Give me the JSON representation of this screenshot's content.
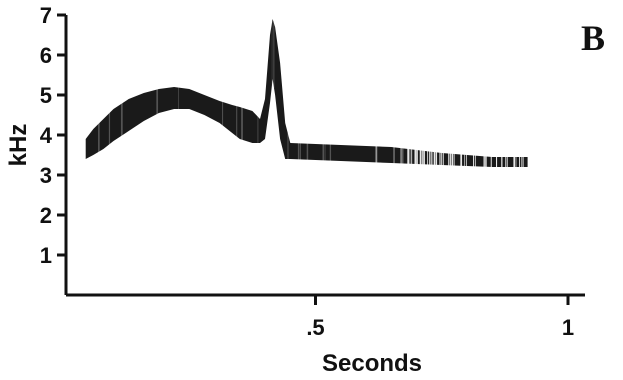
{
  "panel_label": "B",
  "chart_data": {
    "type": "spectrogram",
    "title": "",
    "xlabel": "Seconds",
    "ylabel": "kHz",
    "xlim": [
      -0.05,
      1.05
    ],
    "ylim": [
      0,
      7
    ],
    "x_ticks": [
      {
        "value": 0.5,
        "label": ".5"
      },
      {
        "value": 1.0,
        "label": "1"
      }
    ],
    "y_ticks": [
      {
        "value": 1,
        "label": "1"
      },
      {
        "value": 2,
        "label": "2"
      },
      {
        "value": 3,
        "label": "3"
      },
      {
        "value": 4,
        "label": "4"
      },
      {
        "value": 5,
        "label": "5"
      },
      {
        "value": 6,
        "label": "6"
      },
      {
        "value": 7,
        "label": "7"
      }
    ],
    "grid": false,
    "color": "#1a1a1a",
    "band": [
      {
        "t": 0.045,
        "low": 3.4,
        "high": 3.9
      },
      {
        "t": 0.06,
        "low": 3.5,
        "high": 4.15
      },
      {
        "t": 0.08,
        "low": 3.65,
        "high": 4.4
      },
      {
        "t": 0.1,
        "low": 3.85,
        "high": 4.65
      },
      {
        "t": 0.13,
        "low": 4.1,
        "high": 4.9
      },
      {
        "t": 0.16,
        "low": 4.35,
        "high": 5.05
      },
      {
        "t": 0.19,
        "low": 4.55,
        "high": 5.15
      },
      {
        "t": 0.22,
        "low": 4.65,
        "high": 5.2
      },
      {
        "t": 0.25,
        "low": 4.65,
        "high": 5.15
      },
      {
        "t": 0.28,
        "low": 4.5,
        "high": 5.0
      },
      {
        "t": 0.31,
        "low": 4.3,
        "high": 4.85
      },
      {
        "t": 0.335,
        "low": 4.05,
        "high": 4.75
      },
      {
        "t": 0.35,
        "low": 3.9,
        "high": 4.7
      },
      {
        "t": 0.375,
        "low": 3.8,
        "high": 4.6
      },
      {
        "t": 0.39,
        "low": 3.8,
        "high": 4.4
      },
      {
        "t": 0.4,
        "low": 3.9,
        "high": 4.9
      },
      {
        "t": 0.41,
        "low": 4.8,
        "high": 6.5
      },
      {
        "t": 0.415,
        "low": 5.4,
        "high": 6.9
      },
      {
        "t": 0.42,
        "low": 5.0,
        "high": 6.7
      },
      {
        "t": 0.43,
        "low": 3.9,
        "high": 5.8
      },
      {
        "t": 0.44,
        "low": 3.4,
        "high": 4.3
      },
      {
        "t": 0.45,
        "low": 3.4,
        "high": 3.8
      },
      {
        "t": 0.55,
        "low": 3.35,
        "high": 3.75
      },
      {
        "t": 0.65,
        "low": 3.3,
        "high": 3.7
      },
      {
        "t": 0.75,
        "low": 3.25,
        "high": 3.55
      },
      {
        "t": 0.85,
        "low": 3.2,
        "high": 3.45
      },
      {
        "t": 0.92,
        "low": 3.2,
        "high": 3.45
      }
    ]
  }
}
